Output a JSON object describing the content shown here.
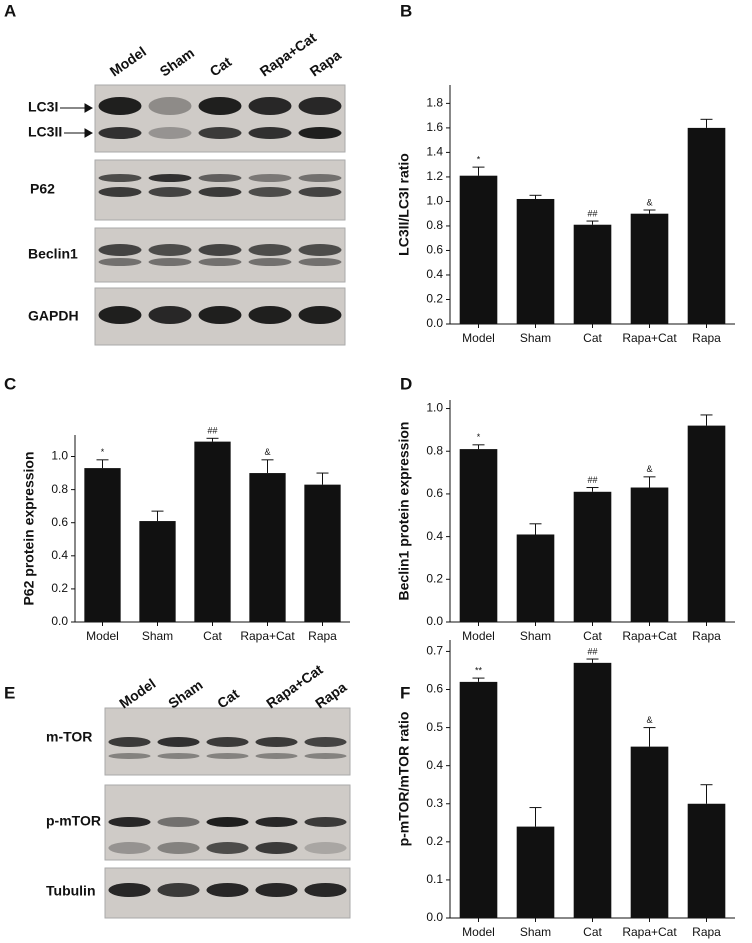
{
  "blots": [
    {
      "panel": "A",
      "lanes": [
        "Model",
        "Sham",
        "Cat",
        "Rapa+Cat",
        "Rapa"
      ],
      "rows": [
        "LC3I",
        "LC3II",
        "P62",
        "Beclin1",
        "GAPDH"
      ]
    },
    {
      "panel": "E",
      "lanes": [
        "Model",
        "Sham",
        "Cat",
        "Rapa+Cat",
        "Rapa"
      ],
      "rows": [
        "m-TOR",
        "p-mTOR",
        "Tubulin"
      ]
    }
  ],
  "chart_data": [
    {
      "type": "bar",
      "panel": "B",
      "y_label": "LC3II/LC3I ratio",
      "categories": [
        "Model",
        "Sham",
        "Cat",
        "Rapa+Cat",
        "Rapa"
      ],
      "values": [
        1.21,
        1.02,
        0.81,
        0.9,
        1.6
      ],
      "errors": [
        0.07,
        0.03,
        0.03,
        0.03,
        0.07
      ],
      "annotations": [
        "*",
        null,
        "##",
        "&",
        null
      ],
      "color": "#111111",
      "ylim": [
        0,
        1.95
      ],
      "yticks": [
        {
          "value": 0,
          "label": "0.0"
        },
        0.2,
        0.4,
        0.6,
        0.8,
        {
          "value": 1,
          "label": "1.0"
        },
        1.2,
        1.4,
        1.6,
        1.8
      ]
    },
    {
      "type": "bar",
      "panel": "C",
      "y_label": "P62 protein expression",
      "categories": [
        "Model",
        "Sham",
        "Cat",
        "Rapa+Cat",
        "Rapa"
      ],
      "values": [
        0.93,
        0.61,
        1.09,
        0.9,
        0.83
      ],
      "errors": [
        0.05,
        0.06,
        0.02,
        0.08,
        0.07
      ],
      "annotations": [
        "*",
        null,
        "##",
        "&",
        null
      ],
      "color": "#111111",
      "ylim": [
        0,
        1.13
      ],
      "yticks": [
        {
          "value": 0,
          "label": "0.0"
        },
        0.2,
        0.4,
        0.6,
        0.8,
        {
          "value": 1,
          "label": "1.0"
        }
      ]
    },
    {
      "type": "bar",
      "panel": "D",
      "y_label": "Beclin1 protein expression",
      "categories": [
        "Model",
        "Sham",
        "Cat",
        "Rapa+Cat",
        "Rapa"
      ],
      "values": [
        0.81,
        0.41,
        0.61,
        0.63,
        0.92
      ],
      "errors": [
        0.02,
        0.05,
        0.02,
        0.05,
        0.05
      ],
      "annotations": [
        "*",
        null,
        "##",
        "&",
        null
      ],
      "color": "#111111",
      "ylim": [
        0,
        1.04
      ],
      "yticks": [
        {
          "value": 0,
          "label": "0.0"
        },
        0.2,
        0.4,
        0.6,
        0.8,
        {
          "value": 1,
          "label": "1.0"
        }
      ]
    },
    {
      "type": "bar",
      "panel": "F",
      "y_label": "p-mTOR/mTOR ratio",
      "categories": [
        "Model",
        "Sham",
        "Cat",
        "Rapa+Cat",
        "Rapa"
      ],
      "values": [
        0.62,
        0.24,
        0.67,
        0.45,
        0.3
      ],
      "errors": [
        0.01,
        0.05,
        0.01,
        0.05,
        0.05
      ],
      "annotations": [
        "**",
        null,
        "##",
        "&",
        null
      ],
      "color": "#111111",
      "ylim": [
        0,
        0.73
      ],
      "yticks": [
        {
          "value": 0,
          "label": "0.0"
        },
        0.1,
        0.2,
        0.3,
        0.4,
        0.5,
        0.6,
        0.7
      ]
    }
  ]
}
